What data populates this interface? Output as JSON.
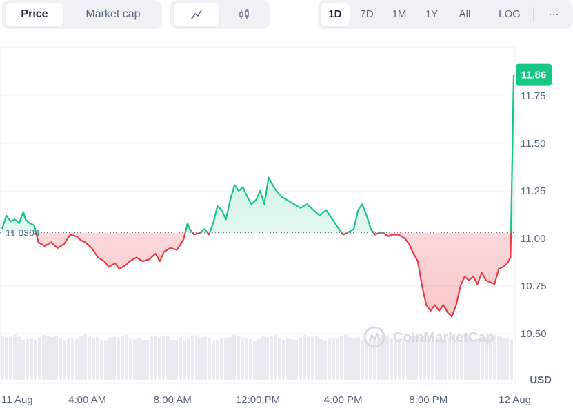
{
  "toolbar": {
    "view_tabs": [
      {
        "label": "Price",
        "active": true
      },
      {
        "label": "Market cap",
        "active": false
      }
    ],
    "chart_types": [
      {
        "icon": "line-chart-icon",
        "active": true
      },
      {
        "icon": "candlestick-icon",
        "active": false
      }
    ],
    "ranges": [
      {
        "label": "1D",
        "active": true
      },
      {
        "label": "7D",
        "active": false
      },
      {
        "label": "1M",
        "active": false
      },
      {
        "label": "1Y",
        "active": false
      },
      {
        "label": "All",
        "active": false
      }
    ],
    "log_label": "LOG",
    "more_label": "···"
  },
  "colors": {
    "up": "#16c784",
    "down": "#ea3943",
    "badge": "#16c784",
    "grid": "#eff2f5",
    "baseline": "#58667e",
    "volume": "#e8ecf1"
  },
  "watermark": "CoinMarketCap",
  "currency_label": "USD",
  "chart_data": {
    "type": "area",
    "title": "",
    "xlabel": "",
    "ylabel": "",
    "ylim": [
      10.4,
      11.95
    ],
    "yticks": [
      10.5,
      10.75,
      11.0,
      11.25,
      11.5,
      11.75
    ],
    "ytick_labels": [
      "10.50",
      "10.75",
      "11.00",
      "11.25",
      "11.50",
      "11.75"
    ],
    "xlim": [
      0,
      24
    ],
    "xticks": [
      0,
      4,
      8,
      12,
      16,
      20,
      24
    ],
    "xtick_labels": [
      "11 Aug",
      "4:00 AM",
      "8:00 AM",
      "12:00 PM",
      "4:00 PM",
      "8:00 PM",
      "12 Aug"
    ],
    "baseline": 11.0304,
    "baseline_label": "11.0304",
    "current_price": 11.86,
    "current_label": "11.86",
    "grid": true,
    "series": [
      {
        "x": [
          0,
          0.2,
          0.4,
          0.6,
          0.8,
          1.0,
          1.1,
          1.3,
          1.5,
          1.7,
          2.0,
          2.3,
          2.6,
          2.9,
          3.2,
          3.5,
          3.7,
          3.9,
          4.2,
          4.5,
          4.8,
          5.0,
          5.3,
          5.5,
          5.8,
          6.0,
          6.3,
          6.6,
          6.9,
          7.2,
          7.4,
          7.6,
          7.9,
          8.2,
          8.5,
          8.7,
          8.8,
          9.0,
          9.3,
          9.5,
          9.7,
          9.9,
          10.1,
          10.3,
          10.5,
          10.7,
          10.9,
          11.1,
          11.3,
          11.5,
          11.7,
          11.9,
          12.1,
          12.3,
          12.5,
          12.8,
          13.1,
          13.4,
          13.7,
          14.0,
          14.3,
          14.6,
          14.9,
          15.2,
          15.5,
          15.8,
          16.0,
          16.2,
          16.5,
          16.7,
          16.9,
          17.1,
          17.3,
          17.5,
          17.7,
          17.9,
          18.1,
          18.3,
          18.6,
          18.9,
          19.1,
          19.3,
          19.5,
          19.7,
          19.9,
          20.1,
          20.3,
          20.5,
          20.7,
          20.9,
          21.1,
          21.3,
          21.5,
          21.7,
          21.9,
          22.1,
          22.3,
          22.5,
          22.7,
          22.9,
          23.1,
          23.3,
          23.5,
          23.7,
          23.85,
          24.0
        ],
        "values": [
          11.05,
          11.12,
          11.09,
          11.1,
          11.08,
          11.14,
          11.1,
          11.08,
          11.07,
          10.98,
          10.96,
          10.98,
          10.95,
          10.97,
          11.02,
          11.01,
          10.99,
          10.98,
          10.95,
          10.9,
          10.88,
          10.85,
          10.87,
          10.84,
          10.86,
          10.88,
          10.9,
          10.88,
          10.89,
          10.92,
          10.88,
          10.93,
          10.95,
          10.94,
          10.99,
          11.08,
          11.05,
          11.02,
          11.03,
          11.05,
          11.02,
          11.08,
          11.17,
          11.15,
          11.1,
          11.2,
          11.28,
          11.25,
          11.27,
          11.22,
          11.18,
          11.2,
          11.25,
          11.18,
          11.32,
          11.26,
          11.22,
          11.2,
          11.18,
          11.16,
          11.18,
          11.15,
          11.12,
          11.15,
          11.1,
          11.05,
          11.02,
          11.03,
          11.05,
          11.15,
          11.18,
          11.12,
          11.05,
          11.02,
          11.03,
          11.03,
          11.01,
          11.02,
          11.02,
          11.0,
          10.97,
          10.92,
          10.88,
          10.75,
          10.65,
          10.62,
          10.65,
          10.62,
          10.65,
          10.61,
          10.59,
          10.65,
          10.75,
          10.8,
          10.78,
          10.8,
          10.76,
          10.82,
          10.78,
          10.77,
          10.76,
          10.84,
          10.85,
          10.87,
          10.9,
          11.86
        ]
      }
    ]
  }
}
